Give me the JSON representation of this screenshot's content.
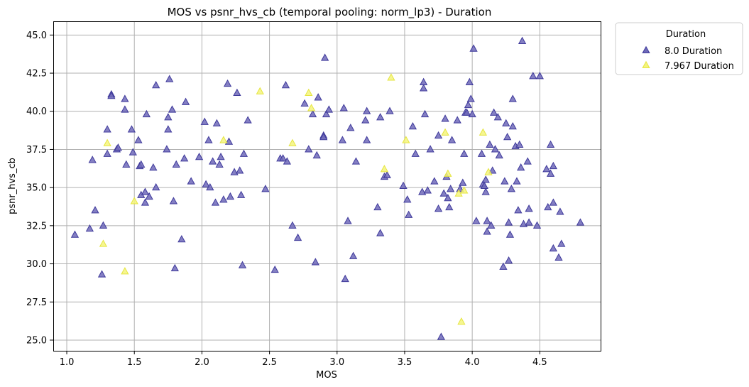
{
  "chart_data": {
    "type": "scatter",
    "title": "MOS vs psnr_hvs_cb (temporal pooling: norm_lp3) - Duration",
    "xlabel": "MOS",
    "ylabel": "psnr_hvs_cb",
    "xlim": [
      0.9,
      4.95
    ],
    "ylim": [
      24.3,
      45.9
    ],
    "xticks": [
      1.0,
      1.5,
      2.0,
      2.5,
      3.0,
      3.5,
      4.0,
      4.5
    ],
    "xtick_labels": [
      "1.0",
      "1.5",
      "2.0",
      "2.5",
      "3.0",
      "3.5",
      "4.0",
      "4.5"
    ],
    "yticks": [
      25.0,
      27.5,
      30.0,
      32.5,
      35.0,
      37.5,
      40.0,
      42.5,
      45.0
    ],
    "ytick_labels": [
      "25.0",
      "27.5",
      "30.0",
      "32.5",
      "35.0",
      "37.5",
      "40.0",
      "42.5",
      "45.0"
    ],
    "grid": true,
    "marker": "triangle",
    "legend": {
      "title": "Duration",
      "placement": "outside-top-right"
    },
    "series": [
      {
        "name": "8.0 Duration",
        "color": "#3f3a9b",
        "fill_color": "#6e69b8",
        "points": [
          [
            1.06,
            31.9
          ],
          [
            1.17,
            32.3
          ],
          [
            1.19,
            36.8
          ],
          [
            1.21,
            33.5
          ],
          [
            1.26,
            29.3
          ],
          [
            1.27,
            32.5
          ],
          [
            1.3,
            38.8
          ],
          [
            1.3,
            37.2
          ],
          [
            1.33,
            41.1
          ],
          [
            1.33,
            41.0
          ],
          [
            1.37,
            37.5
          ],
          [
            1.38,
            37.6
          ],
          [
            1.43,
            40.8
          ],
          [
            1.43,
            40.1
          ],
          [
            1.44,
            36.5
          ],
          [
            1.48,
            38.8
          ],
          [
            1.49,
            37.3
          ],
          [
            1.53,
            38.1
          ],
          [
            1.54,
            36.4
          ],
          [
            1.55,
            36.5
          ],
          [
            1.55,
            34.5
          ],
          [
            1.58,
            34.7
          ],
          [
            1.58,
            34.0
          ],
          [
            1.59,
            39.8
          ],
          [
            1.61,
            34.4
          ],
          [
            1.64,
            36.3
          ],
          [
            1.66,
            41.7
          ],
          [
            1.66,
            35.0
          ],
          [
            1.74,
            37.5
          ],
          [
            1.75,
            39.6
          ],
          [
            1.75,
            38.8
          ],
          [
            1.76,
            42.1
          ],
          [
            1.78,
            40.1
          ],
          [
            1.79,
            34.1
          ],
          [
            1.8,
            29.7
          ],
          [
            1.81,
            36.5
          ],
          [
            1.85,
            31.6
          ],
          [
            1.87,
            36.9
          ],
          [
            1.88,
            40.6
          ],
          [
            1.92,
            35.4
          ],
          [
            1.98,
            37.0
          ],
          [
            2.02,
            39.3
          ],
          [
            2.03,
            35.2
          ],
          [
            2.05,
            38.1
          ],
          [
            2.06,
            35.0
          ],
          [
            2.08,
            36.7
          ],
          [
            2.1,
            34.0
          ],
          [
            2.11,
            39.2
          ],
          [
            2.13,
            36.5
          ],
          [
            2.14,
            37.0
          ],
          [
            2.16,
            34.2
          ],
          [
            2.19,
            41.8
          ],
          [
            2.2,
            38.0
          ],
          [
            2.21,
            34.4
          ],
          [
            2.24,
            36.0
          ],
          [
            2.26,
            41.2
          ],
          [
            2.28,
            36.1
          ],
          [
            2.29,
            34.5
          ],
          [
            2.3,
            29.9
          ],
          [
            2.31,
            37.2
          ],
          [
            2.34,
            39.4
          ],
          [
            2.47,
            34.9
          ],
          [
            2.54,
            29.6
          ],
          [
            2.58,
            36.9
          ],
          [
            2.6,
            36.9
          ],
          [
            2.62,
            41.7
          ],
          [
            2.63,
            36.7
          ],
          [
            2.67,
            32.5
          ],
          [
            2.71,
            31.7
          ],
          [
            2.76,
            40.5
          ],
          [
            2.79,
            37.5
          ],
          [
            2.82,
            39.8
          ],
          [
            2.84,
            30.1
          ],
          [
            2.85,
            37.1
          ],
          [
            2.86,
            40.9
          ],
          [
            2.9,
            38.4
          ],
          [
            2.9,
            38.3
          ],
          [
            2.91,
            43.5
          ],
          [
            2.92,
            39.8
          ],
          [
            2.94,
            40.1
          ],
          [
            3.04,
            38.1
          ],
          [
            3.05,
            40.2
          ],
          [
            3.06,
            29.0
          ],
          [
            3.08,
            32.8
          ],
          [
            3.1,
            38.9
          ],
          [
            3.12,
            30.5
          ],
          [
            3.14,
            36.7
          ],
          [
            3.21,
            39.4
          ],
          [
            3.22,
            40.0
          ],
          [
            3.22,
            38.1
          ],
          [
            3.3,
            33.7
          ],
          [
            3.32,
            32.0
          ],
          [
            3.32,
            39.6
          ],
          [
            3.35,
            35.7
          ],
          [
            3.37,
            35.8
          ],
          [
            3.39,
            40.0
          ],
          [
            3.49,
            35.1
          ],
          [
            3.52,
            34.2
          ],
          [
            3.53,
            33.2
          ],
          [
            3.56,
            39.0
          ],
          [
            3.58,
            37.2
          ],
          [
            3.63,
            34.7
          ],
          [
            3.64,
            41.9
          ],
          [
            3.64,
            41.5
          ],
          [
            3.65,
            39.8
          ],
          [
            3.67,
            34.8
          ],
          [
            3.69,
            37.5
          ],
          [
            3.72,
            35.4
          ],
          [
            3.75,
            33.6
          ],
          [
            3.75,
            38.4
          ],
          [
            3.77,
            25.2
          ],
          [
            3.79,
            34.6
          ],
          [
            3.8,
            39.5
          ],
          [
            3.81,
            35.7
          ],
          [
            3.82,
            34.3
          ],
          [
            3.83,
            33.7
          ],
          [
            3.84,
            34.9
          ],
          [
            3.85,
            38.1
          ],
          [
            3.89,
            39.4
          ],
          [
            3.91,
            34.9
          ],
          [
            3.93,
            35.3
          ],
          [
            3.94,
            37.2
          ],
          [
            3.95,
            39.9
          ],
          [
            3.96,
            39.9
          ],
          [
            3.97,
            40.4
          ],
          [
            3.98,
            41.9
          ],
          [
            3.99,
            40.8
          ],
          [
            4.0,
            39.8
          ],
          [
            4.01,
            44.1
          ],
          [
            4.03,
            32.8
          ],
          [
            4.07,
            37.2
          ],
          [
            4.08,
            35.2
          ],
          [
            4.09,
            35.1
          ],
          [
            4.1,
            35.5
          ],
          [
            4.1,
            34.7
          ],
          [
            4.11,
            32.8
          ],
          [
            4.11,
            32.1
          ],
          [
            4.13,
            37.8
          ],
          [
            4.14,
            32.5
          ],
          [
            4.15,
            36.1
          ],
          [
            4.16,
            39.9
          ],
          [
            4.17,
            37.5
          ],
          [
            4.19,
            39.6
          ],
          [
            4.2,
            37.1
          ],
          [
            4.23,
            29.8
          ],
          [
            4.24,
            35.4
          ],
          [
            4.25,
            39.2
          ],
          [
            4.26,
            38.3
          ],
          [
            4.27,
            32.7
          ],
          [
            4.27,
            30.2
          ],
          [
            4.28,
            31.9
          ],
          [
            4.29,
            34.9
          ],
          [
            4.3,
            39.0
          ],
          [
            4.3,
            40.8
          ],
          [
            4.32,
            37.7
          ],
          [
            4.33,
            35.4
          ],
          [
            4.34,
            33.5
          ],
          [
            4.35,
            37.8
          ],
          [
            4.36,
            36.3
          ],
          [
            4.37,
            44.6
          ],
          [
            4.38,
            32.6
          ],
          [
            4.41,
            36.7
          ],
          [
            4.42,
            33.6
          ],
          [
            4.42,
            32.7
          ],
          [
            4.45,
            42.3
          ],
          [
            4.48,
            32.5
          ],
          [
            4.5,
            42.3
          ],
          [
            4.55,
            36.2
          ],
          [
            4.56,
            33.7
          ],
          [
            4.58,
            35.9
          ],
          [
            4.58,
            37.8
          ],
          [
            4.6,
            36.4
          ],
          [
            4.6,
            34.0
          ],
          [
            4.6,
            31.0
          ],
          [
            4.64,
            30.4
          ],
          [
            4.65,
            33.4
          ],
          [
            4.66,
            31.3
          ],
          [
            4.8,
            32.7
          ]
        ]
      },
      {
        "name": "7.967 Duration",
        "color": "#e5e540",
        "fill_color": "#f4f47c",
        "points": [
          [
            1.27,
            31.3
          ],
          [
            1.3,
            37.9
          ],
          [
            1.43,
            29.5
          ],
          [
            1.5,
            34.1
          ],
          [
            2.16,
            38.1
          ],
          [
            2.43,
            41.3
          ],
          [
            2.67,
            37.9
          ],
          [
            2.79,
            41.2
          ],
          [
            2.81,
            40.2
          ],
          [
            3.35,
            36.2
          ],
          [
            3.4,
            42.2
          ],
          [
            3.51,
            38.1
          ],
          [
            3.8,
            38.6
          ],
          [
            3.82,
            35.9
          ],
          [
            3.9,
            34.6
          ],
          [
            3.92,
            26.2
          ],
          [
            3.94,
            34.8
          ],
          [
            4.08,
            38.6
          ],
          [
            4.12,
            36.0
          ]
        ]
      }
    ]
  }
}
